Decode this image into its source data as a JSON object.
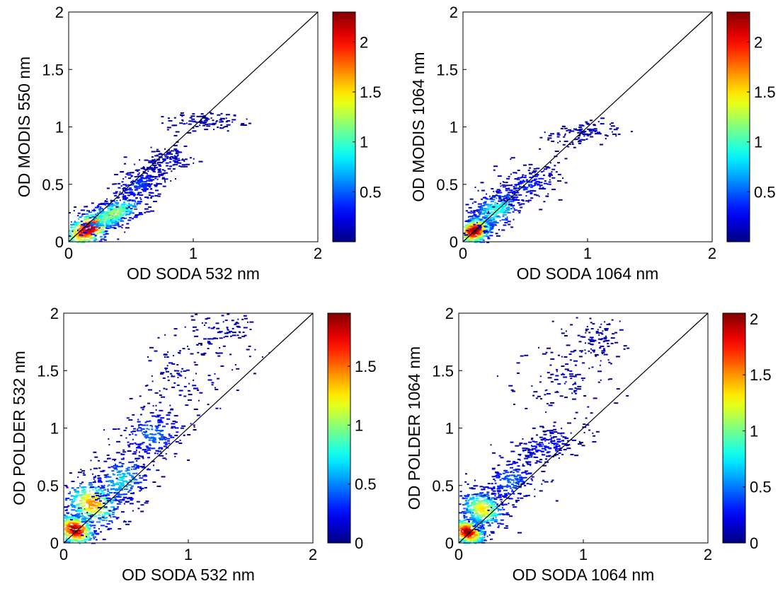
{
  "colormap": "jet",
  "chart_data": [
    {
      "type": "heatmap",
      "subtype": "2d-histogram-density-with-1:1-line",
      "xlabel": "OD SODA 532 nm",
      "ylabel": "OD MODIS 550 nm",
      "xlim": [
        0,
        2
      ],
      "ylim": [
        0,
        2
      ],
      "xticks": [
        "0",
        "1",
        "2"
      ],
      "yticks": [
        "0",
        "0.5",
        "1",
        "1.5",
        "2"
      ],
      "reference_line": {
        "x": [
          0,
          2
        ],
        "y": [
          0,
          2
        ]
      },
      "colorbar": {
        "range": [
          0,
          2.3
        ],
        "ticks": [
          "0.5",
          "1",
          "1.5",
          "2"
        ]
      },
      "clusters": [
        {
          "cx": 0.15,
          "cy": 0.12,
          "sx": 0.13,
          "sy": 0.07,
          "rot": 0.6,
          "density": 2.2
        },
        {
          "cx": 0.35,
          "cy": 0.25,
          "sx": 0.14,
          "sy": 0.06,
          "rot": 0.5,
          "density": 1.2
        },
        {
          "cx": 0.55,
          "cy": 0.5,
          "sx": 0.12,
          "sy": 0.08,
          "rot": 0.6,
          "density": 0.35
        },
        {
          "cx": 0.75,
          "cy": 0.7,
          "sx": 0.12,
          "sy": 0.06,
          "rot": 0.3,
          "density": 0.12
        },
        {
          "cx": 1.1,
          "cy": 1.05,
          "sx": 0.16,
          "sy": 0.04,
          "rot": 0.0,
          "density": 0.05
        }
      ]
    },
    {
      "type": "heatmap",
      "subtype": "2d-histogram-density-with-1:1-line",
      "xlabel": "OD SODA 1064 nm",
      "ylabel": "OD MODIS 1064 nm",
      "xlim": [
        0,
        2
      ],
      "ylim": [
        0,
        2
      ],
      "xticks": [
        "0",
        "1",
        "2"
      ],
      "yticks": [
        "0",
        "0.5",
        "1",
        "1.5",
        "2"
      ],
      "reference_line": {
        "x": [
          0,
          2
        ],
        "y": [
          0,
          2
        ]
      },
      "colorbar": {
        "range": [
          0,
          2.3
        ],
        "ticks": [
          "0.5",
          "1",
          "1.5",
          "2"
        ]
      },
      "clusters": [
        {
          "cx": 0.08,
          "cy": 0.1,
          "sx": 0.08,
          "sy": 0.06,
          "rot": 0.6,
          "density": 2.3
        },
        {
          "cx": 0.25,
          "cy": 0.28,
          "sx": 0.12,
          "sy": 0.08,
          "rot": 0.6,
          "density": 0.9
        },
        {
          "cx": 0.5,
          "cy": 0.5,
          "sx": 0.14,
          "sy": 0.08,
          "rot": 0.4,
          "density": 0.3
        },
        {
          "cx": 0.95,
          "cy": 0.95,
          "sx": 0.14,
          "sy": 0.05,
          "rot": 0.2,
          "density": 0.08
        }
      ]
    },
    {
      "type": "heatmap",
      "subtype": "2d-histogram-density-with-1:1-line",
      "xlabel": "OD SODA 532 nm",
      "ylabel": "OD POLDER 532 nm",
      "xlim": [
        0,
        2
      ],
      "ylim": [
        0,
        2
      ],
      "xticks": [
        "0",
        "1",
        "2"
      ],
      "yticks": [
        "0",
        "0.5",
        "1",
        "1.5",
        "2"
      ],
      "reference_line": {
        "x": [
          0,
          2
        ],
        "y": [
          0,
          2
        ]
      },
      "colorbar": {
        "range": [
          0,
          1.95
        ],
        "ticks": [
          "0",
          "0.5",
          "1",
          "1.5"
        ]
      },
      "clusters": [
        {
          "cx": 0.08,
          "cy": 0.12,
          "sx": 0.07,
          "sy": 0.09,
          "rot": 1.0,
          "density": 1.9
        },
        {
          "cx": 0.22,
          "cy": 0.35,
          "sx": 0.1,
          "sy": 0.12,
          "rot": 1.0,
          "density": 1.4
        },
        {
          "cx": 0.45,
          "cy": 0.55,
          "sx": 0.13,
          "sy": 0.1,
          "rot": 0.8,
          "density": 0.6
        },
        {
          "cx": 0.7,
          "cy": 0.95,
          "sx": 0.12,
          "sy": 0.12,
          "rot": 0.8,
          "density": 0.4
        },
        {
          "cx": 0.95,
          "cy": 1.45,
          "sx": 0.18,
          "sy": 0.18,
          "rot": 0.8,
          "density": 0.08
        },
        {
          "cx": 1.25,
          "cy": 1.85,
          "sx": 0.15,
          "sy": 0.12,
          "rot": 0.5,
          "density": 0.05
        }
      ]
    },
    {
      "type": "heatmap",
      "subtype": "2d-histogram-density-with-1:1-line",
      "xlabel": "OD SODA 1064 nm",
      "ylabel": "OD POLDER 1064 nm",
      "xlim": [
        0,
        2
      ],
      "ylim": [
        0,
        2
      ],
      "xticks": [
        "0",
        "1",
        "2"
      ],
      "yticks": [
        "0",
        "0.5",
        "1",
        "1.5",
        "2"
      ],
      "reference_line": {
        "x": [
          0,
          2
        ],
        "y": [
          0,
          2
        ]
      },
      "colorbar": {
        "range": [
          0,
          2.05
        ],
        "ticks": [
          "0",
          "0.5",
          "1",
          "1.5",
          "2"
        ]
      },
      "clusters": [
        {
          "cx": 0.06,
          "cy": 0.1,
          "sx": 0.06,
          "sy": 0.08,
          "rot": 1.0,
          "density": 2.0
        },
        {
          "cx": 0.18,
          "cy": 0.3,
          "sx": 0.08,
          "sy": 0.1,
          "rot": 1.0,
          "density": 1.3
        },
        {
          "cx": 0.4,
          "cy": 0.55,
          "sx": 0.12,
          "sy": 0.1,
          "rot": 0.8,
          "density": 0.4
        },
        {
          "cx": 0.7,
          "cy": 0.85,
          "sx": 0.14,
          "sy": 0.06,
          "rot": 0.3,
          "density": 0.25
        },
        {
          "cx": 0.85,
          "cy": 1.4,
          "sx": 0.2,
          "sy": 0.2,
          "rot": 0.8,
          "density": 0.08
        },
        {
          "cx": 1.1,
          "cy": 1.75,
          "sx": 0.1,
          "sy": 0.1,
          "rot": 0.0,
          "density": 0.05
        }
      ]
    }
  ]
}
